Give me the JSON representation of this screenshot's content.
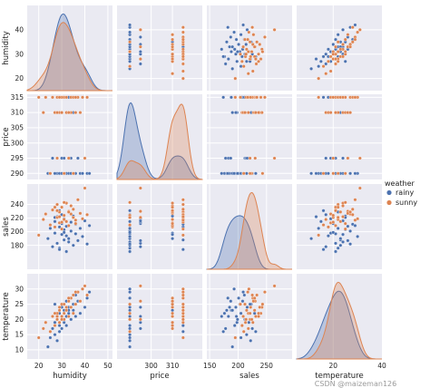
{
  "chart_data": {
    "type": "scatter",
    "kind": "pairplot",
    "variables": [
      "humidity",
      "price",
      "sales",
      "temperature"
    ],
    "axis_labels": {
      "humidity": "humidity",
      "price": "price",
      "sales": "sales",
      "temperature": "temperature"
    },
    "ranges": {
      "humidity": [
        15,
        50
      ],
      "price": [
        288,
        316
      ],
      "sales": [
        145,
        270
      ],
      "temperature": [
        7,
        35
      ]
    },
    "ticks": {
      "humidity": [
        20,
        30,
        40,
        50
      ],
      "price": [
        290,
        295,
        300,
        305,
        310,
        315
      ],
      "sales": [
        180,
        200,
        220,
        240
      ],
      "temperature": [
        10,
        15,
        20,
        25,
        30
      ]
    },
    "x_ticks": {
      "humidity": [
        20,
        30,
        40,
        50
      ],
      "price": [
        300,
        310
      ],
      "sales": [
        150,
        200,
        250
      ],
      "temperature": [
        20,
        40
      ]
    },
    "x_ranges": {
      "humidity": [
        15,
        52
      ],
      "price": [
        284,
        324
      ],
      "sales": [
        145,
        295
      ],
      "temperature": [
        5,
        40
      ]
    },
    "hue": "weather",
    "legend": {
      "title": "weather",
      "position": "right",
      "entries": [
        "rainy",
        "sunny"
      ]
    },
    "colors": {
      "rainy": "#4c72b0",
      "sunny": "#dd8452"
    },
    "style": {
      "background": "#eaeaf2",
      "grid": true,
      "grid_color": "#ffffff"
    },
    "series": [
      {
        "name": "rainy",
        "price_levels": [
          290,
          295,
          310,
          315
        ],
        "humidity": [
          24,
          25,
          26,
          27,
          27,
          28,
          28,
          29,
          29,
          29,
          30,
          30,
          30,
          31,
          31,
          31,
          32,
          32,
          32,
          33,
          33,
          34,
          34,
          35,
          35,
          36,
          36,
          37,
          38,
          39,
          40,
          41,
          42,
          31,
          29,
          27,
          33
        ],
        "price": [
          290,
          290,
          295,
          290,
          310,
          290,
          295,
          315,
          290,
          290,
          295,
          310,
          290,
          315,
          290,
          295,
          290,
          310,
          290,
          315,
          290,
          295,
          290,
          290,
          310,
          290,
          315,
          295,
          290,
          290,
          295,
          290,
          290,
          290,
          315,
          290,
          310
        ],
        "sales": [
          190,
          205,
          178,
          215,
          198,
          222,
          183,
          207,
          231,
          176,
          212,
          196,
          225,
          188,
          203,
          219,
          171,
          208,
          194,
          229,
          185,
          214,
          201,
          180,
          223,
          197,
          211,
          187,
          205,
          193,
          216,
          182,
          209,
          199,
          174,
          221,
          190
        ],
        "temperature": [
          11,
          14,
          17,
          15,
          19,
          13,
          21,
          18,
          16,
          22,
          20,
          24,
          17,
          23,
          25,
          19,
          21,
          26,
          18,
          22,
          24,
          20,
          27,
          23,
          25,
          21,
          28,
          26,
          22,
          30,
          24,
          27,
          29,
          20,
          16,
          25,
          23
        ]
      },
      {
        "name": "sunny",
        "price_levels": [
          290,
          295,
          310,
          315
        ],
        "humidity": [
          20,
          22,
          23,
          25,
          26,
          27,
          28,
          28,
          29,
          29,
          30,
          30,
          31,
          31,
          32,
          32,
          33,
          33,
          34,
          34,
          35,
          35,
          36,
          37,
          38,
          39,
          40,
          41,
          27,
          30,
          33,
          29,
          31,
          36,
          28
        ],
        "price": [
          315,
          310,
          315,
          290,
          315,
          310,
          315,
          295,
          310,
          315,
          310,
          315,
          290,
          315,
          310,
          315,
          295,
          310,
          315,
          310,
          290,
          315,
          310,
          315,
          310,
          315,
          295,
          315,
          310,
          315,
          310,
          315,
          290,
          315,
          310
        ],
        "sales": [
          195,
          218,
          226,
          210,
          232,
          207,
          240,
          221,
          213,
          229,
          236,
          204,
          224,
          218,
          242,
          215,
          230,
          209,
          226,
          238,
          221,
          233,
          212,
          247,
          227,
          219,
          264,
          225,
          236,
          214,
          229,
          222,
          243,
          217,
          231
        ],
        "temperature": [
          14,
          17,
          19,
          16,
          21,
          18,
          22,
          20,
          19,
          23,
          21,
          25,
          20,
          22,
          24,
          23,
          26,
          21,
          27,
          24,
          22,
          28,
          25,
          29,
          26,
          30,
          31,
          28,
          22,
          20,
          27,
          24,
          25,
          29,
          21
        ]
      }
    ]
  },
  "watermark": "CSDN @maizeman126"
}
